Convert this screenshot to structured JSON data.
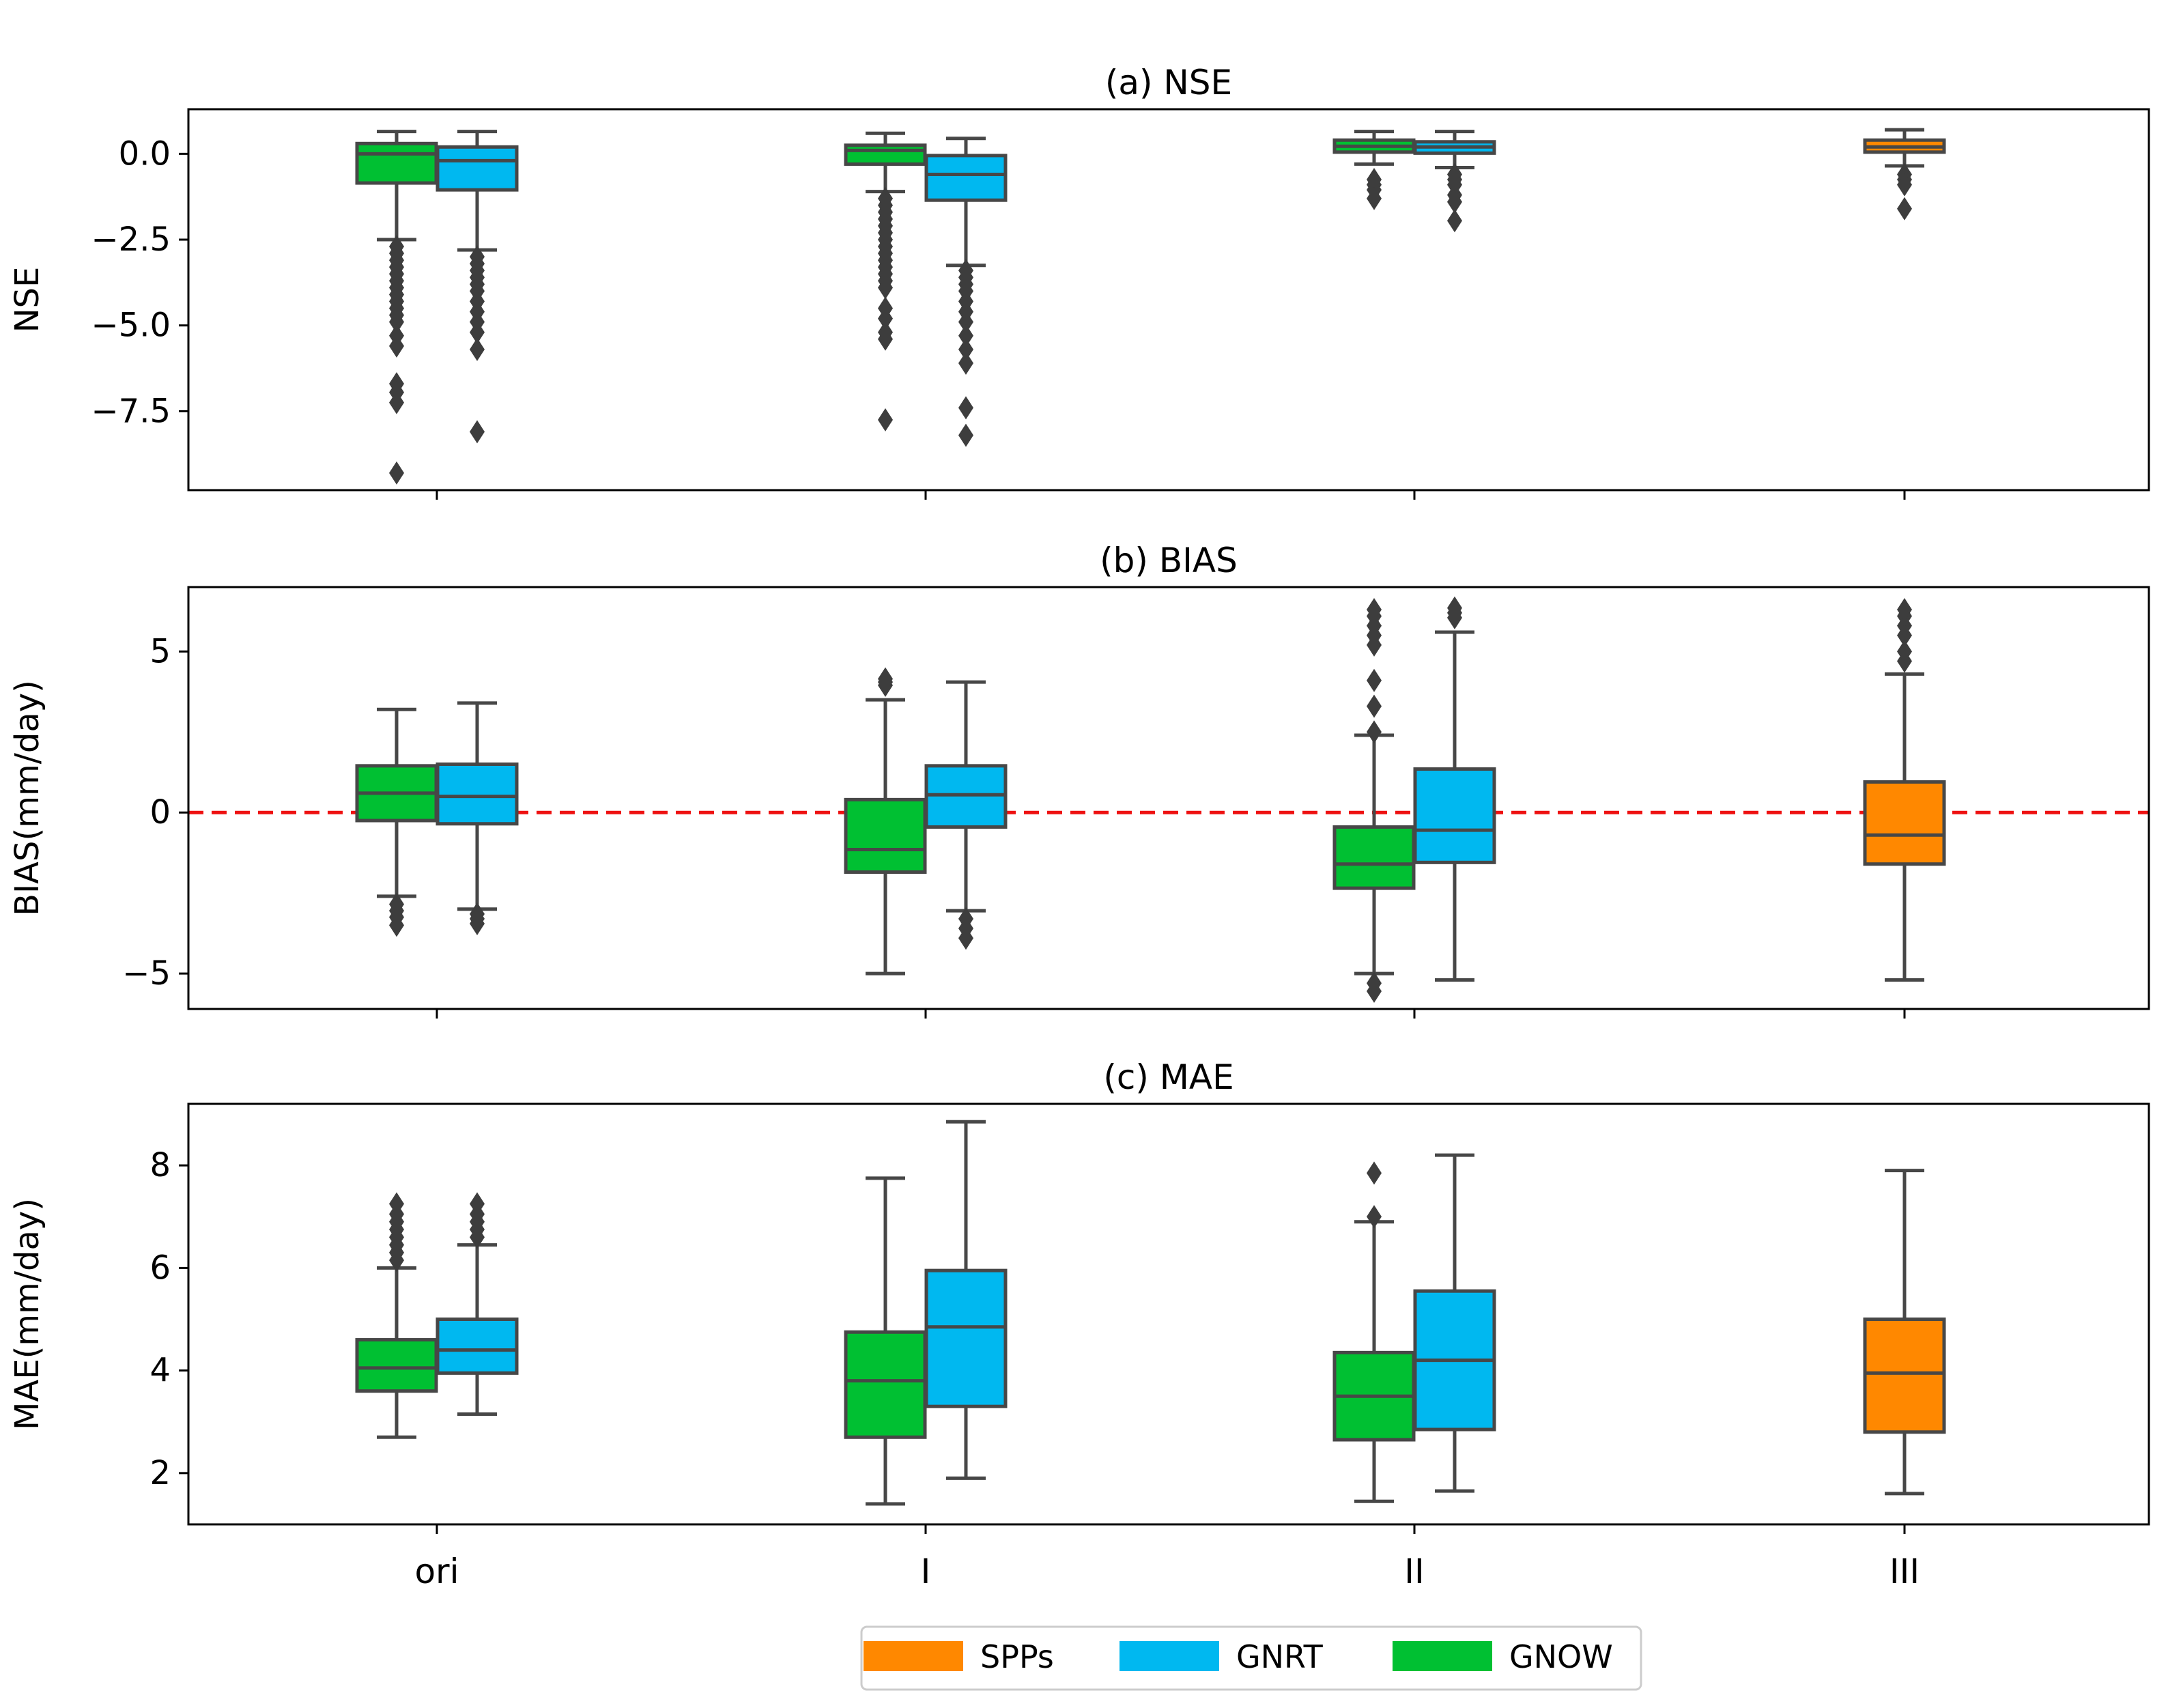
{
  "figure": {
    "title": ""
  },
  "chart_data": [
    {
      "type": "box",
      "title": "(a) NSE",
      "xlabel": "",
      "ylabel": "NSE",
      "ylim": [
        -9.8,
        1.3
      ],
      "yticks": [
        0.0,
        -2.5,
        -5.0,
        -7.5
      ],
      "ytick_labels": [
        "0.0",
        "−2.5",
        "−5.0",
        "−7.5"
      ],
      "reference_line": null,
      "groups": [
        {
          "category": "ori",
          "boxes": [
            {
              "series": "GNOW",
              "q1": -0.85,
              "median": 0.0,
              "q3": 0.3,
              "whisker_low": -2.5,
              "whisker_high": 0.65,
              "outliers": [
                -2.7,
                -2.9,
                -3.1,
                -3.3,
                -3.5,
                -3.7,
                -3.9,
                -4.1,
                -4.3,
                -4.5,
                -4.7,
                -4.9,
                -5.3,
                -5.6,
                -6.7,
                -6.95,
                -7.25,
                -9.3
              ]
            },
            {
              "series": "GNRT",
              "q1": -1.05,
              "median": -0.2,
              "q3": 0.2,
              "whisker_low": -2.8,
              "whisker_high": 0.65,
              "outliers": [
                -3.0,
                -3.2,
                -3.4,
                -3.6,
                -3.8,
                -4.0,
                -4.3,
                -4.6,
                -4.9,
                -5.2,
                -5.7,
                -8.1
              ]
            }
          ]
        },
        {
          "category": "I",
          "boxes": [
            {
              "series": "GNOW",
              "q1": -0.3,
              "median": 0.1,
              "q3": 0.25,
              "whisker_low": -1.1,
              "whisker_high": 0.6,
              "outliers": [
                -1.3,
                -1.5,
                -1.7,
                -1.9,
                -2.1,
                -2.3,
                -2.5,
                -2.7,
                -2.9,
                -3.1,
                -3.3,
                -3.5,
                -3.7,
                -3.9,
                -4.5,
                -4.8,
                -5.2,
                -5.4,
                -7.75
              ]
            },
            {
              "series": "GNRT",
              "q1": -1.35,
              "median": -0.6,
              "q3": -0.05,
              "whisker_low": -3.25,
              "whisker_high": 0.45,
              "outliers": [
                -3.4,
                -3.6,
                -3.8,
                -4.0,
                -4.3,
                -4.6,
                -4.9,
                -5.3,
                -5.7,
                -6.1,
                -7.4,
                -8.2
              ]
            }
          ]
        },
        {
          "category": "II",
          "boxes": [
            {
              "series": "GNOW",
              "q1": 0.05,
              "median": 0.22,
              "q3": 0.4,
              "whisker_low": -0.3,
              "whisker_high": 0.65,
              "outliers": [
                -0.75,
                -0.9,
                -1.05,
                -1.3
              ]
            },
            {
              "series": "GNRT",
              "q1": 0.02,
              "median": 0.2,
              "q3": 0.35,
              "whisker_low": -0.4,
              "whisker_high": 0.65,
              "outliers": [
                -0.6,
                -0.75,
                -0.9,
                -1.2,
                -1.4,
                -1.95
              ]
            }
          ]
        },
        {
          "category": "III",
          "boxes": [
            {
              "series": "SPPs",
              "q1": 0.05,
              "median": 0.2,
              "q3": 0.4,
              "whisker_low": -0.35,
              "whisker_high": 0.7,
              "outliers": [
                -0.6,
                -0.75,
                -0.9,
                -1.6
              ]
            }
          ]
        }
      ]
    },
    {
      "type": "box",
      "title": "(b) BIAS",
      "xlabel": "",
      "ylabel": "BIAS(mm/day)",
      "ylim": [
        -6.1,
        7.0
      ],
      "yticks": [
        5,
        0,
        -5
      ],
      "ytick_labels": [
        "5",
        "0",
        "−5"
      ],
      "reference_line": {
        "y": 0,
        "color": "#ee1111",
        "style": "dashed"
      },
      "groups": [
        {
          "category": "ori",
          "boxes": [
            {
              "series": "GNOW",
              "q1": -0.25,
              "median": 0.6,
              "q3": 1.45,
              "whisker_low": -2.6,
              "whisker_high": 3.2,
              "outliers": [
                -2.85,
                -3.05,
                -3.25,
                -3.5
              ]
            },
            {
              "series": "GNRT",
              "q1": -0.35,
              "median": 0.5,
              "q3": 1.5,
              "whisker_low": -3.0,
              "whisker_high": 3.4,
              "outliers": [
                -3.15,
                -3.3,
                -3.45
              ]
            }
          ]
        },
        {
          "category": "I",
          "boxes": [
            {
              "series": "GNOW",
              "q1": -1.85,
              "median": -1.15,
              "q3": 0.4,
              "whisker_low": -5.0,
              "whisker_high": 3.5,
              "outliers": [
                3.95,
                4.05,
                4.15
              ]
            },
            {
              "series": "GNRT",
              "q1": -0.45,
              "median": 0.55,
              "q3": 1.45,
              "whisker_low": -3.05,
              "whisker_high": 4.05,
              "outliers": [
                -3.3,
                -3.6,
                -3.9
              ]
            }
          ]
        },
        {
          "category": "II",
          "boxes": [
            {
              "series": "GNOW",
              "q1": -2.35,
              "median": -1.6,
              "q3": -0.45,
              "whisker_low": -5.0,
              "whisker_high": 2.4,
              "outliers": [
                2.5,
                3.3,
                4.1,
                5.2,
                5.5,
                5.8,
                6.1,
                6.3,
                -5.3,
                -5.55
              ]
            },
            {
              "series": "GNRT",
              "q1": -1.55,
              "median": -0.55,
              "q3": 1.35,
              "whisker_low": -5.2,
              "whisker_high": 5.6,
              "outliers": [
                6.05,
                6.2,
                6.35
              ]
            }
          ]
        },
        {
          "category": "III",
          "boxes": [
            {
              "series": "SPPs",
              "q1": -1.6,
              "median": -0.7,
              "q3": 0.95,
              "whisker_low": -5.2,
              "whisker_high": 4.3,
              "outliers": [
                4.7,
                5.0,
                5.5,
                5.8,
                6.1,
                6.3
              ]
            }
          ]
        }
      ]
    },
    {
      "type": "box",
      "title": "(c) MAE",
      "xlabel": "",
      "ylabel": "MAE(mm/day)",
      "ylim": [
        1.0,
        9.2
      ],
      "yticks": [
        2,
        4,
        6,
        8
      ],
      "ytick_labels": [
        "2",
        "4",
        "6",
        "8"
      ],
      "xtick_labels": [
        "ori",
        "I",
        "II",
        "III"
      ],
      "reference_line": null,
      "groups": [
        {
          "category": "ori",
          "boxes": [
            {
              "series": "GNOW",
              "q1": 3.6,
              "median": 4.05,
              "q3": 4.6,
              "whisker_low": 2.7,
              "whisker_high": 6.0,
              "outliers": [
                6.15,
                6.3,
                6.45,
                6.6,
                6.75,
                6.9,
                7.05,
                7.25
              ]
            },
            {
              "series": "GNRT",
              "q1": 3.95,
              "median": 4.4,
              "q3": 5.0,
              "whisker_low": 3.15,
              "whisker_high": 6.45,
              "outliers": [
                6.6,
                6.75,
                6.9,
                7.05,
                7.25
              ]
            }
          ]
        },
        {
          "category": "I",
          "boxes": [
            {
              "series": "GNOW",
              "q1": 2.7,
              "median": 3.8,
              "q3": 4.75,
              "whisker_low": 1.4,
              "whisker_high": 7.75,
              "outliers": []
            },
            {
              "series": "GNRT",
              "q1": 3.3,
              "median": 4.85,
              "q3": 5.95,
              "whisker_low": 1.9,
              "whisker_high": 8.85,
              "outliers": []
            }
          ]
        },
        {
          "category": "II",
          "boxes": [
            {
              "series": "GNOW",
              "q1": 2.65,
              "median": 3.5,
              "q3": 4.35,
              "whisker_low": 1.45,
              "whisker_high": 6.9,
              "outliers": [
                7.0,
                7.85
              ]
            },
            {
              "series": "GNRT",
              "q1": 2.85,
              "median": 4.2,
              "q3": 5.55,
              "whisker_low": 1.65,
              "whisker_high": 8.2,
              "outliers": []
            }
          ]
        },
        {
          "category": "III",
          "boxes": [
            {
              "series": "SPPs",
              "q1": 2.8,
              "median": 3.95,
              "q3": 5.0,
              "whisker_low": 1.6,
              "whisker_high": 7.9,
              "outliers": []
            }
          ]
        }
      ]
    }
  ],
  "legend": {
    "placement": "bottom-center",
    "items": [
      {
        "label": "SPPs",
        "color": "#ff8800"
      },
      {
        "label": "GNRT",
        "color": "#00b8f0"
      },
      {
        "label": "GNOW",
        "color": "#00c032"
      }
    ]
  },
  "style": {
    "series_colors": {
      "GNOW": "#00c032",
      "GNRT": "#00b8f0",
      "SPPs": "#ff8800"
    },
    "line_color": "#474747",
    "outlier_color": "#3d3d3d"
  }
}
